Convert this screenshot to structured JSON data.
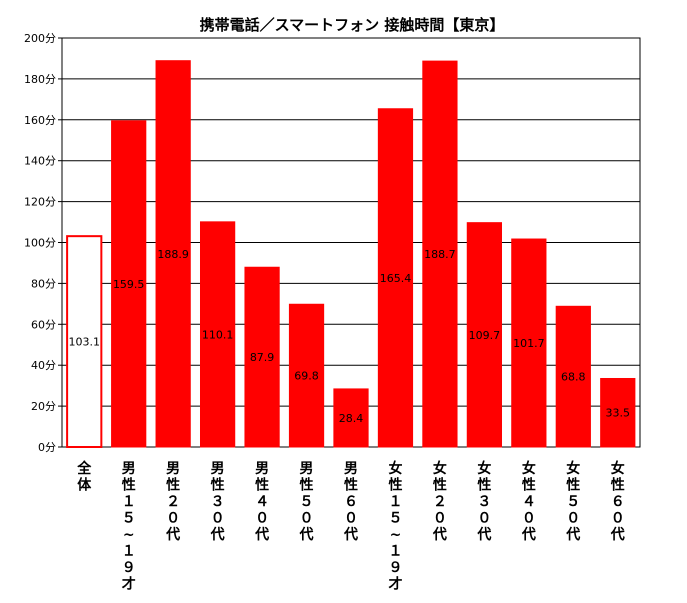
{
  "chart_data": {
    "type": "bar",
    "title": "携帯電話／スマートフォン 接触時間【東京】",
    "xlabel": "",
    "ylabel": "",
    "ylim": [
      0,
      200
    ],
    "yticks": [
      0,
      20,
      40,
      60,
      80,
      100,
      120,
      140,
      160,
      180,
      200
    ],
    "yunit": "分",
    "grid": true,
    "legend": "none",
    "categories": [
      "全体",
      "男性15~19才",
      "男性20代",
      "男性30代",
      "男性40代",
      "男性50代",
      "男性60代",
      "女性15~19才",
      "女性20代",
      "女性30代",
      "女性40代",
      "女性50代",
      "女性60代"
    ],
    "category_display": [
      "全体",
      "男性１５~１９才",
      "男性２０代",
      "男性３０代",
      "男性４０代",
      "男性５０代",
      "男性６０代",
      "女性１５~１９才",
      "女性２０代",
      "女性３０代",
      "女性４０代",
      "女性５０代",
      "女性６０代"
    ],
    "values": [
      103.1,
      159.5,
      188.9,
      110.1,
      87.9,
      69.8,
      28.4,
      165.4,
      188.7,
      109.7,
      101.7,
      68.8,
      33.5
    ],
    "value_labels": [
      "103.1",
      "159.5",
      "188.9",
      "110.1",
      "87.9",
      "69.8",
      "28.4",
      "165.4",
      "188.7",
      "109.7",
      "101.7",
      "68.8",
      "33.5"
    ],
    "bar_color": "#ff0000",
    "highlight_first_outline_only": true,
    "outline_color": "#ff0000"
  }
}
